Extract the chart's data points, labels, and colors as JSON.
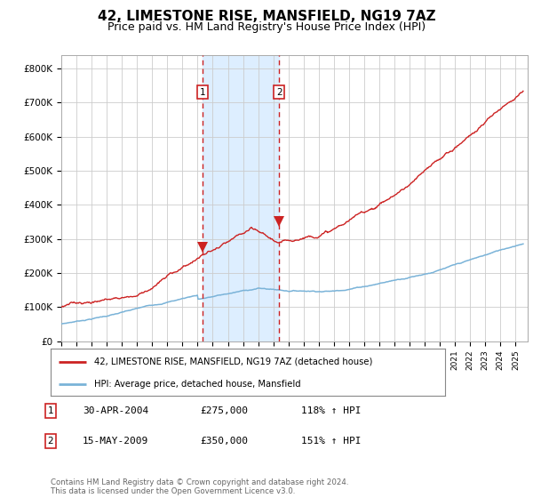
{
  "title": "42, LIMESTONE RISE, MANSFIELD, NG19 7AZ",
  "subtitle": "Price paid vs. HM Land Registry's House Price Index (HPI)",
  "title_fontsize": 11,
  "subtitle_fontsize": 9,
  "ylabel_ticks": [
    "£0",
    "£100K",
    "£200K",
    "£300K",
    "£400K",
    "£500K",
    "£600K",
    "£700K",
    "£800K"
  ],
  "ytick_vals": [
    0,
    100000,
    200000,
    300000,
    400000,
    500000,
    600000,
    700000,
    800000
  ],
  "ylim": [
    0,
    840000
  ],
  "xlim_start": 1995.0,
  "xlim_end": 2025.8,
  "background_color": "#ffffff",
  "plot_bg_color": "#ffffff",
  "grid_color": "#cccccc",
  "hpi_line_color": "#7ab3d8",
  "price_line_color": "#cc2222",
  "sale1_date": 2004.33,
  "sale1_price": 275000,
  "sale2_date": 2009.38,
  "sale2_price": 350000,
  "shade_color": "#ddeeff",
  "dashed_color": "#cc2222",
  "legend_label1": "42, LIMESTONE RISE, MANSFIELD, NG19 7AZ (detached house)",
  "legend_label2": "HPI: Average price, detached house, Mansfield",
  "table_rows": [
    {
      "num": "1",
      "date": "30-APR-2004",
      "price": "£275,000",
      "pct": "118% ↑ HPI"
    },
    {
      "num": "2",
      "date": "15-MAY-2009",
      "price": "£350,000",
      "pct": "151% ↑ HPI"
    }
  ],
  "footnote": "Contains HM Land Registry data © Crown copyright and database right 2024.\nThis data is licensed under the Open Government Licence v3.0."
}
